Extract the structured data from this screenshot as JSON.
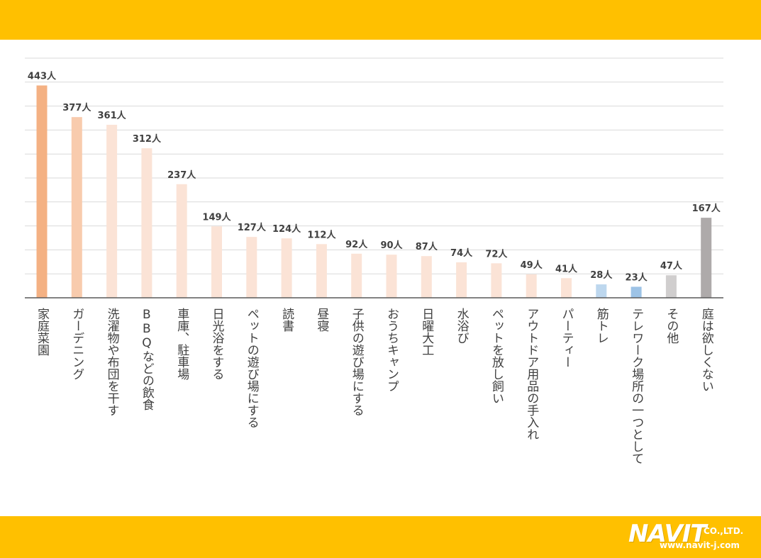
{
  "chart_data": {
    "type": "bar",
    "title": "",
    "xlabel": "",
    "ylabel": "",
    "ylim": [
      0,
      500
    ],
    "grid": true,
    "unit_suffix": "人",
    "categories": [
      "家庭菜園",
      "ガーデニング",
      "洗濯物や布団を干す",
      "BBQなどの飲食",
      "車庫、駐車場",
      "日光浴をする",
      "ペットの遊び場にする",
      "読書",
      "昼寝",
      "子供の遊び場にする",
      "おうちキャンプ",
      "日曜大工",
      "水浴び",
      "ペットを放し飼い",
      "アウトドア用品の手入れ",
      "パーティー",
      "筋トレ",
      "テレワーク場所の一つとして",
      "その他",
      "庭は欲しくない"
    ],
    "values": [
      443,
      377,
      361,
      312,
      237,
      149,
      127,
      124,
      112,
      92,
      90,
      87,
      74,
      72,
      49,
      41,
      28,
      23,
      47,
      167
    ],
    "value_labels": [
      "443人",
      "377人",
      "361人",
      "312人",
      "237人",
      "149人",
      "127人",
      "124人",
      "112人",
      "92人",
      "90人",
      "87人",
      "74人",
      "72人",
      "49人",
      "41人",
      "28人",
      "23人",
      "47人",
      "167人"
    ],
    "colors": [
      "#f4b183",
      "#f8cbad",
      "#fbe3d6",
      "#fbe3d6",
      "#fbe3d6",
      "#fbe3d6",
      "#fbe3d6",
      "#fbe3d6",
      "#fbe3d6",
      "#fbe3d6",
      "#fbe3d6",
      "#fbe3d6",
      "#fbe3d6",
      "#fbe3d6",
      "#fbe3d6",
      "#fbe3d6",
      "#bdd7ee",
      "#9dc3e6",
      "#d0cece",
      "#aeaaaa"
    ]
  },
  "theme": {
    "band_color": "#ffc000",
    "grid_color": "#d9d9d9",
    "axis_color": "#595959",
    "label_color": "#404040"
  },
  "logo": {
    "main": "NAVIT",
    "company": "CO.,LTD.",
    "url": "www.navit-j.com"
  }
}
